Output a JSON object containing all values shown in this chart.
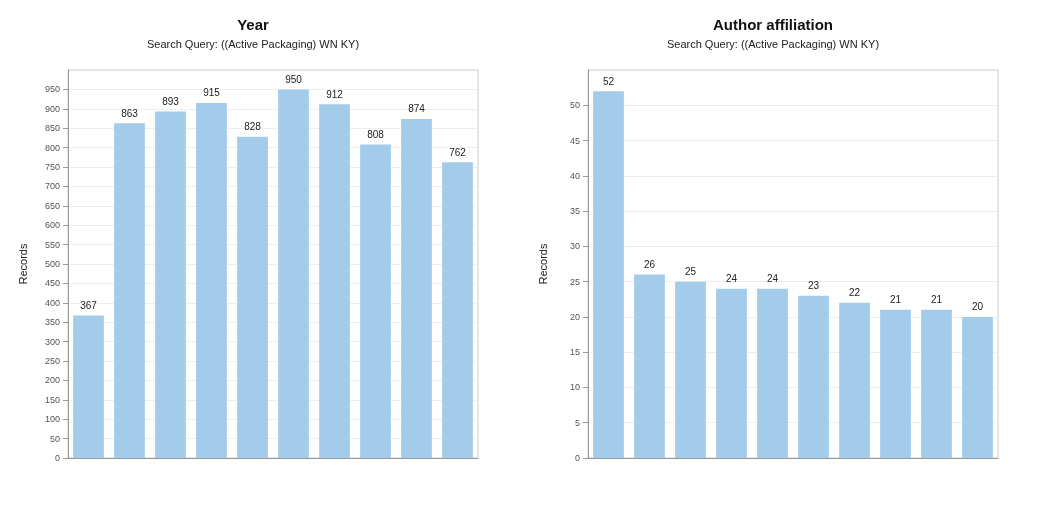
{
  "chart_data": [
    {
      "type": "bar",
      "title": "Year",
      "subtitle": "Search Query: ((Active Packaging) WN KY)",
      "ylabel": "Records",
      "categories": [
        null,
        null,
        null,
        null,
        null,
        null,
        null,
        null,
        null,
        null
      ],
      "values": [
        367,
        863,
        893,
        915,
        828,
        950,
        912,
        808,
        874,
        762
      ],
      "color": "#a3cbea",
      "ylim": [
        0,
        1000
      ],
      "yticks": [
        0,
        50,
        100,
        150,
        200,
        250,
        300,
        350,
        400,
        450,
        500,
        550,
        600,
        650,
        700,
        750,
        800,
        850,
        900,
        950
      ],
      "grid": "y",
      "data_labels": true
    },
    {
      "type": "bar",
      "title": "Author affiliation",
      "subtitle": "Search Query: ((Active Packaging) WN KY)",
      "ylabel": "Records",
      "categories": [
        null,
        null,
        null,
        null,
        null,
        null,
        null,
        null,
        null,
        null
      ],
      "values": [
        52,
        26,
        25,
        24,
        24,
        23,
        22,
        21,
        21,
        20
      ],
      "color": "#a3cbea",
      "ylim": [
        0,
        55
      ],
      "yticks": [
        0,
        5,
        10,
        15,
        20,
        25,
        30,
        35,
        40,
        45,
        50
      ],
      "grid": "y",
      "data_labels": true
    }
  ]
}
